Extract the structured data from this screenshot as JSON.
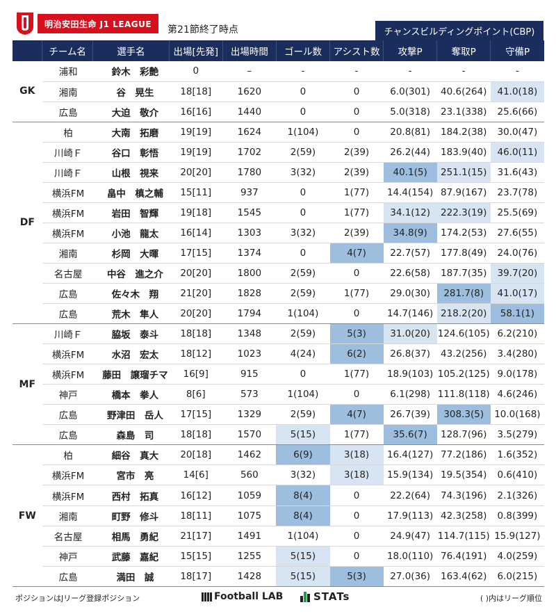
{
  "header": {
    "brand_text": "明治安田生命 J1 LEAGUE",
    "subtitle": "第21節終了時点",
    "cbp_label": "チャンスビルディングポイント(CBP)"
  },
  "columns": [
    "チーム名",
    "選手名",
    "出場[先発]",
    "出場時間",
    "ゴール数",
    "アシスト数",
    "攻撃P",
    "奪取P",
    "守備P"
  ],
  "groups": [
    {
      "pos": "GK",
      "rows": [
        {
          "team": "浦和",
          "player": "鈴木　彩艶",
          "apps": "0",
          "mins": "–",
          "goals": "-",
          "assists": "-",
          "atk": "-",
          "steal": "-",
          "def": "-",
          "hl": {}
        },
        {
          "team": "湘南",
          "player": "谷　晃生",
          "apps": "18[18]",
          "mins": "1620",
          "goals": "0",
          "assists": "0",
          "atk": "6.0(301)",
          "steal": "40.6(264)",
          "def": "41.0(18)",
          "hl": {
            "def": 2
          }
        },
        {
          "team": "広島",
          "player": "大迫　敬介",
          "apps": "16[16]",
          "mins": "1440",
          "goals": "0",
          "assists": "0",
          "atk": "5.0(318)",
          "steal": "23.1(338)",
          "def": "25.6(66)",
          "hl": {}
        }
      ]
    },
    {
      "pos": "DF",
      "rows": [
        {
          "team": "柏",
          "player": "大南　拓磨",
          "apps": "19[19]",
          "mins": "1624",
          "goals": "1(104)",
          "assists": "0",
          "atk": "20.8(81)",
          "steal": "184.2(38)",
          "def": "30.0(47)",
          "hl": {}
        },
        {
          "team": "川崎Ｆ",
          "player": "谷口　彰悟",
          "apps": "19[19]",
          "mins": "1702",
          "goals": "2(59)",
          "assists": "2(39)",
          "atk": "26.2(44)",
          "steal": "183.9(40)",
          "def": "46.0(11)",
          "hl": {
            "def": 2
          }
        },
        {
          "team": "川崎Ｆ",
          "player": "山根　視来",
          "apps": "20[20]",
          "mins": "1780",
          "goals": "3(32)",
          "assists": "2(39)",
          "atk": "40.1(5)",
          "steal": "251.1(15)",
          "def": "31.6(43)",
          "hl": {
            "atk": 1,
            "steal": 2
          }
        },
        {
          "team": "横浜FM",
          "player": "畠中　槙之輔",
          "apps": "15[11]",
          "mins": "937",
          "goals": "0",
          "assists": "1(77)",
          "atk": "14.4(154)",
          "steal": "87.9(167)",
          "def": "23.7(78)",
          "hl": {}
        },
        {
          "team": "横浜FM",
          "player": "岩田　智輝",
          "apps": "19[18]",
          "mins": "1545",
          "goals": "0",
          "assists": "1(77)",
          "atk": "34.1(12)",
          "steal": "222.3(19)",
          "def": "25.5(69)",
          "hl": {
            "atk": 2,
            "steal": 2
          }
        },
        {
          "team": "横浜FM",
          "player": "小池　龍太",
          "apps": "16[14]",
          "mins": "1303",
          "goals": "3(32)",
          "assists": "2(39)",
          "atk": "34.8(9)",
          "steal": "174.2(53)",
          "def": "27.6(55)",
          "hl": {
            "atk": 1
          }
        },
        {
          "team": "湘南",
          "player": "杉岡　大暉",
          "apps": "17[15]",
          "mins": "1374",
          "goals": "0",
          "assists": "4(7)",
          "atk": "22.7(57)",
          "steal": "177.8(49)",
          "def": "24.0(76)",
          "hl": {
            "assists": 1
          }
        },
        {
          "team": "名古屋",
          "player": "中谷　進之介",
          "apps": "20[20]",
          "mins": "1800",
          "goals": "2(59)",
          "assists": "0",
          "atk": "22.6(58)",
          "steal": "187.7(35)",
          "def": "39.7(20)",
          "hl": {
            "def": 2
          }
        },
        {
          "team": "広島",
          "player": "佐々木　翔",
          "apps": "21[20]",
          "mins": "1828",
          "goals": "2(59)",
          "assists": "1(77)",
          "atk": "29.0(30)",
          "steal": "281.7(8)",
          "def": "41.0(17)",
          "hl": {
            "steal": 1,
            "def": 2
          }
        },
        {
          "team": "広島",
          "player": "荒木　隼人",
          "apps": "20[20]",
          "mins": "1794",
          "goals": "1(104)",
          "assists": "0",
          "atk": "14.7(146)",
          "steal": "218.2(20)",
          "def": "58.1(1)",
          "hl": {
            "steal": 2,
            "def": 1
          }
        }
      ]
    },
    {
      "pos": "MF",
      "rows": [
        {
          "team": "川崎Ｆ",
          "player": "脇坂　泰斗",
          "apps": "18[18]",
          "mins": "1348",
          "goals": "2(59)",
          "assists": "5(3)",
          "atk": "31.0(20)",
          "steal": "124.6(105)",
          "def": "6.2(210)",
          "hl": {
            "assists": 1,
            "atk": 2
          }
        },
        {
          "team": "横浜FM",
          "player": "水沼　宏太",
          "apps": "18[12]",
          "mins": "1023",
          "goals": "4(24)",
          "assists": "6(2)",
          "atk": "26.8(37)",
          "steal": "43.2(256)",
          "def": "3.4(280)",
          "hl": {
            "assists": 1
          }
        },
        {
          "team": "横浜FM",
          "player": "藤田　譲瑠チマ",
          "apps": "16[9]",
          "mins": "915",
          "goals": "0",
          "assists": "1(77)",
          "atk": "18.9(103)",
          "steal": "105.2(125)",
          "def": "9.0(178)",
          "hl": {}
        },
        {
          "team": "神戸",
          "player": "橋本　拳人",
          "apps": "8[6]",
          "mins": "573",
          "goals": "1(104)",
          "assists": "0",
          "atk": "6.1(298)",
          "steal": "111.8(118)",
          "def": "4.6(246)",
          "hl": {}
        },
        {
          "team": "広島",
          "player": "野津田　岳人",
          "apps": "17[15]",
          "mins": "1329",
          "goals": "2(59)",
          "assists": "4(7)",
          "atk": "26.7(39)",
          "steal": "308.3(5)",
          "def": "10.0(168)",
          "hl": {
            "assists": 1,
            "steal": 1
          }
        },
        {
          "team": "広島",
          "player": "森島　司",
          "apps": "18[18]",
          "mins": "1570",
          "goals": "5(15)",
          "assists": "1(77)",
          "atk": "35.6(7)",
          "steal": "128.7(96)",
          "def": "3.5(279)",
          "hl": {
            "goals": 2,
            "atk": 1
          }
        }
      ]
    },
    {
      "pos": "FW",
      "rows": [
        {
          "team": "柏",
          "player": "細谷　真大",
          "apps": "20[18]",
          "mins": "1462",
          "goals": "6(9)",
          "assists": "3(18)",
          "atk": "16.4(127)",
          "steal": "77.2(186)",
          "def": "1.6(352)",
          "hl": {
            "goals": 1,
            "assists": 2
          }
        },
        {
          "team": "横浜FM",
          "player": "宮市　亮",
          "apps": "14[6]",
          "mins": "560",
          "goals": "3(32)",
          "assists": "3(18)",
          "atk": "15.9(134)",
          "steal": "19.5(354)",
          "def": "0.6(410)",
          "hl": {
            "assists": 2
          }
        },
        {
          "team": "横浜FM",
          "player": "西村　拓真",
          "apps": "16[12]",
          "mins": "1059",
          "goals": "8(4)",
          "assists": "0",
          "atk": "22.2(64)",
          "steal": "74.3(196)",
          "def": "2.1(326)",
          "hl": {
            "goals": 1
          }
        },
        {
          "team": "湘南",
          "player": "町野　修斗",
          "apps": "18[11]",
          "mins": "1075",
          "goals": "8(4)",
          "assists": "0",
          "atk": "17.9(113)",
          "steal": "42.3(258)",
          "def": "0.8(399)",
          "hl": {
            "goals": 1
          }
        },
        {
          "team": "名古屋",
          "player": "相馬　勇紀",
          "apps": "21[17]",
          "mins": "1491",
          "goals": "1(104)",
          "assists": "0",
          "atk": "24.9(47)",
          "steal": "114.7(115)",
          "def": "15.9(127)",
          "hl": {}
        },
        {
          "team": "神戸",
          "player": "武藤　嘉紀",
          "apps": "15[15]",
          "mins": "1255",
          "goals": "5(15)",
          "assists": "0",
          "atk": "18.0(110)",
          "steal": "76.4(191)",
          "def": "4.0(259)",
          "hl": {
            "goals": 2
          }
        },
        {
          "team": "広島",
          "player": "満田　誠",
          "apps": "18[17]",
          "mins": "1428",
          "goals": "5(15)",
          "assists": "5(3)",
          "atk": "27.0(36)",
          "steal": "163.4(62)",
          "def": "6.0(215)",
          "hl": {
            "goals": 2,
            "assists": 1
          }
        }
      ]
    }
  ],
  "footer": {
    "left_note": "ポジションはJリーグ登録ポジション",
    "brand1": "Football LAB",
    "brand2": "STATs",
    "right_note": "( )内はリーグ順位"
  },
  "colors": {
    "header_navy": "#1b2d5d",
    "brand_red": "#d7101e",
    "highlight_strong": "#9dbede",
    "highlight_light": "#d7e5f2"
  },
  "icons": [
    "jleague-logo-icon",
    "football-lab-grid-icon",
    "stats-bars-icon"
  ]
}
